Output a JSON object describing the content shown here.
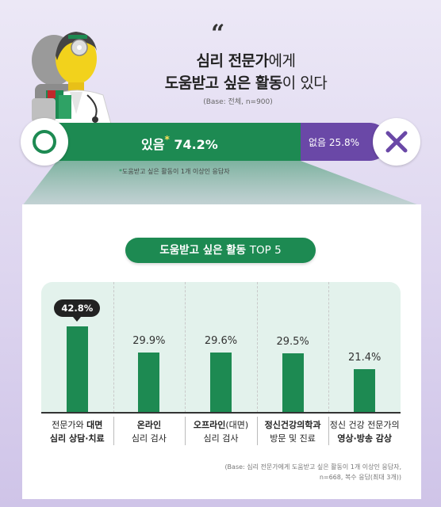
{
  "header": {
    "quote_mark": "“",
    "title_line1_bold": "심리 전문가",
    "title_line1_rest": "에게",
    "title_line2_bold": "도움받고 싶은 활동",
    "title_line2_rest": "이 있다",
    "base": "(Base: 전체, n=900)"
  },
  "summary": {
    "yes_label": "있음",
    "yes_star": "*",
    "yes_value": "74.2%",
    "no_label": "없음",
    "no_value": "25.8%",
    "yes_icon": "circle-o-icon",
    "no_icon": "x-icon",
    "note_star": "*",
    "note": "도움받고 싶은 활동이 1개 이상인 응답자",
    "colors": {
      "yes": "#1d8a52",
      "no": "#6a48a7"
    }
  },
  "chart_title": {
    "bold": "도움받고 싶은 활동",
    "rest": "TOP 5"
  },
  "chart_data": {
    "type": "bar",
    "title": "도움받고 싶은 활동 TOP 5",
    "categories": [
      [
        "전문가와 ",
        "대면",
        "심리 상담·치료"
      ],
      [
        "",
        "온라인",
        "심리 검사"
      ],
      [
        "",
        "오프라인",
        "(대면)",
        "심리 검사"
      ],
      [
        "",
        "정신건강의학과",
        "방문 및 진료"
      ],
      [
        "정신 건강 전문가의",
        "영상·방송 감상"
      ]
    ],
    "values": [
      42.8,
      29.9,
      29.6,
      29.5,
      21.4
    ],
    "value_labels": [
      "42.8%",
      "29.9%",
      "29.6%",
      "29.5%",
      "21.4%"
    ],
    "ylim": [
      0,
      50
    ],
    "color": "#1d8a52"
  },
  "footer": {
    "base_line1": "(Base: 심리 전문가에게 도움받고 싶은 활동이 1개 이상인 응답자,",
    "base_line2": "n=668, 복수 응답(최대 3개))"
  }
}
